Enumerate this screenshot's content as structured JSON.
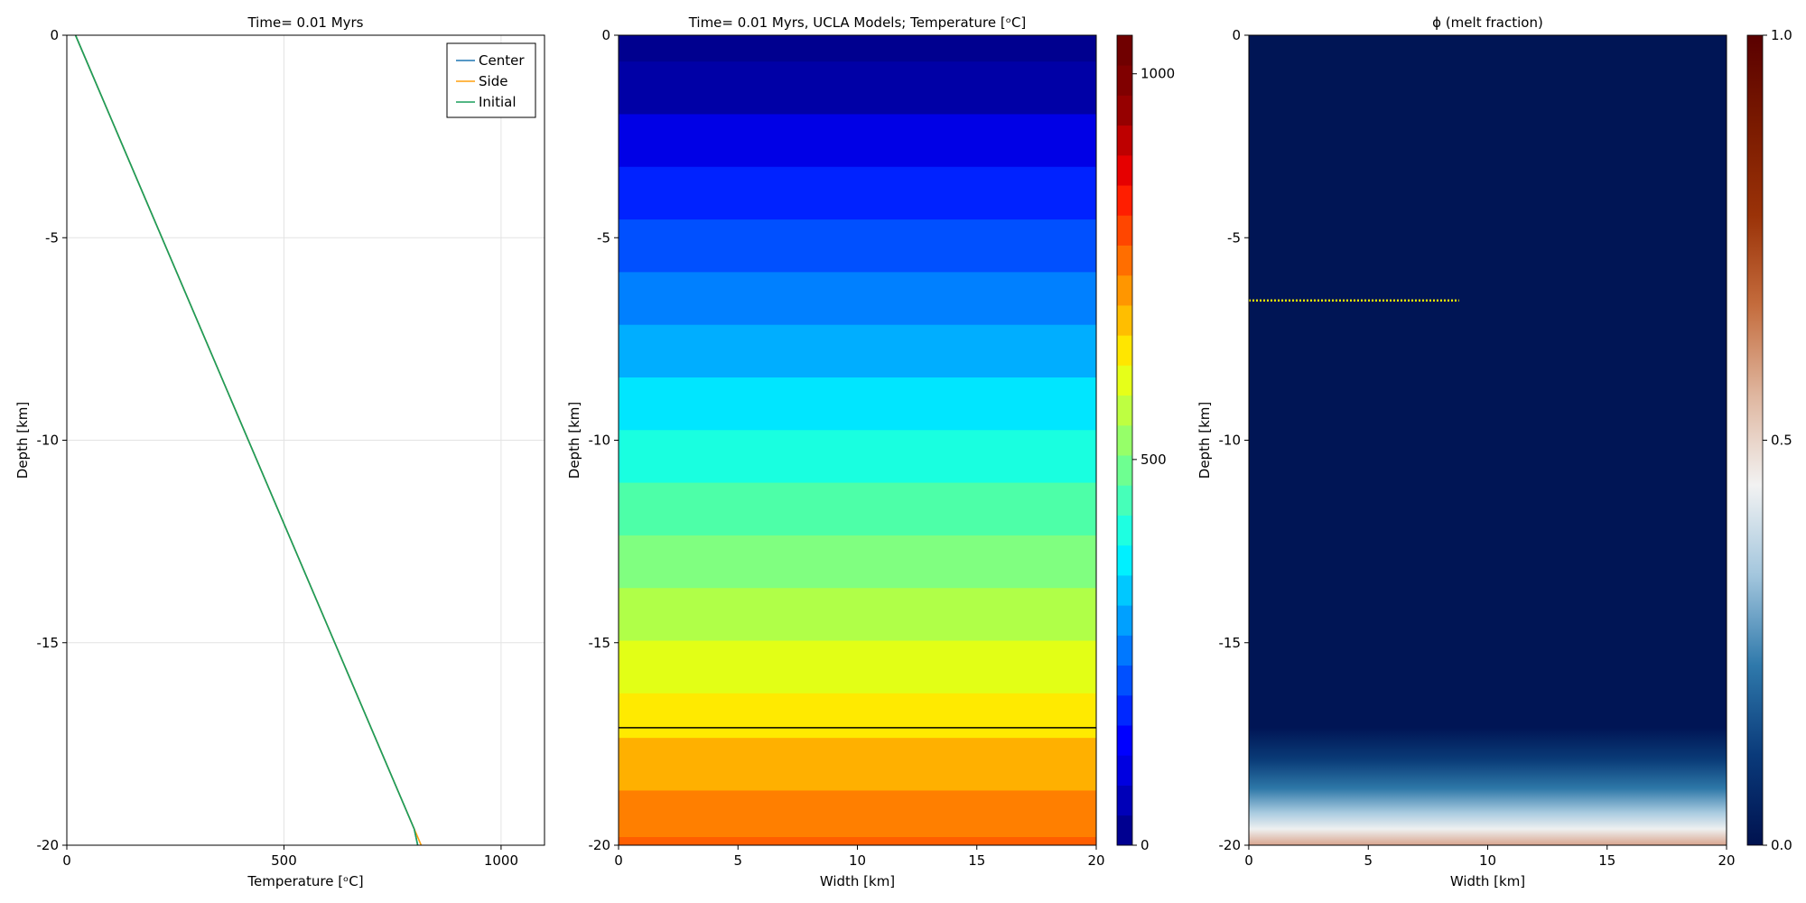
{
  "chart_data": [
    {
      "type": "line",
      "title": "Time= 0.01 Myrs",
      "xlabel": "Temperature [ᵒC]",
      "ylabel": "Depth [km]",
      "xlim": [
        0,
        1100
      ],
      "ylim": [
        -20,
        0
      ],
      "xticks": [
        "0",
        "500",
        "1000"
      ],
      "xtick_values": [
        0,
        500,
        1000
      ],
      "yticks": [
        "0",
        "-5",
        "-10",
        "-15",
        "-20"
      ],
      "ytick_values": [
        0,
        -5,
        -10,
        -15,
        -20
      ],
      "grid": true,
      "legend_position": "top-right",
      "series": [
        {
          "name": "Center",
          "color": "#1f77b4",
          "x": [
            20,
            800,
            808
          ],
          "y": [
            0,
            -19.6,
            -20
          ]
        },
        {
          "name": "Side",
          "color": "#ff9f0e",
          "x": [
            20,
            800,
            816
          ],
          "y": [
            0,
            -19.6,
            -20
          ]
        },
        {
          "name": "Initial",
          "color": "#1a9e5c",
          "x": [
            20,
            800,
            808
          ],
          "y": [
            0,
            -19.6,
            -20
          ]
        }
      ]
    },
    {
      "type": "heatmap",
      "title": "Time= 0.01 Myrs, UCLA Models; Temperature [ᵒC]",
      "xlabel": "Width [km]",
      "ylabel": "Depth [km]",
      "xlim": [
        0,
        20
      ],
      "ylim": [
        -20,
        0
      ],
      "xticks": [
        "0",
        "5",
        "10",
        "15",
        "20"
      ],
      "xtick_values": [
        0,
        5,
        10,
        15,
        20
      ],
      "yticks": [
        "0",
        "-5",
        "-10",
        "-15",
        "-20"
      ],
      "ytick_values": [
        0,
        -5,
        -10,
        -15,
        -20
      ],
      "contour_line_depth": -17.1,
      "bands": [
        {
          "top": 0,
          "bottom": -0.65,
          "value": 30,
          "color": "#00008f"
        },
        {
          "top": -0.65,
          "bottom": -1.95,
          "value": 90,
          "color": "#0000a6"
        },
        {
          "top": -1.95,
          "bottom": -3.25,
          "value": 150,
          "color": "#0000e6"
        },
        {
          "top": -3.25,
          "bottom": -4.55,
          "value": 210,
          "color": "#0022ff"
        },
        {
          "top": -4.55,
          "bottom": -5.85,
          "value": 270,
          "color": "#0050ff"
        },
        {
          "top": -5.85,
          "bottom": -7.15,
          "value": 330,
          "color": "#0080ff"
        },
        {
          "top": -7.15,
          "bottom": -8.45,
          "value": 390,
          "color": "#00aeff"
        },
        {
          "top": -8.45,
          "bottom": -9.75,
          "value": 450,
          "color": "#00e6ff"
        },
        {
          "top": -9.75,
          "bottom": -11.05,
          "value": 510,
          "color": "#19ffe0"
        },
        {
          "top": -11.05,
          "bottom": -12.35,
          "value": 570,
          "color": "#4dffa8"
        },
        {
          "top": -12.35,
          "bottom": -13.65,
          "value": 630,
          "color": "#80ff80"
        },
        {
          "top": -13.65,
          "bottom": -14.95,
          "value": 690,
          "color": "#b0ff48"
        },
        {
          "top": -14.95,
          "bottom": -16.25,
          "value": 750,
          "color": "#e2ff16"
        },
        {
          "top": -16.25,
          "bottom": -17.35,
          "value": 800,
          "color": "#ffea00"
        },
        {
          "top": -17.35,
          "bottom": -18.65,
          "value": 860,
          "color": "#ffb000"
        },
        {
          "top": -18.65,
          "bottom": -19.8,
          "value": 920,
          "color": "#ff7f00"
        },
        {
          "top": -19.8,
          "bottom": -20,
          "value": 960,
          "color": "#ff5e00"
        }
      ],
      "colorbar": {
        "range": [
          0,
          1050
        ],
        "ticks": [
          "0",
          "500",
          "1000"
        ],
        "tick_values": [
          0,
          500,
          1000
        ],
        "colors": [
          "#000090",
          "#0000b8",
          "#0000e0",
          "#0000ff",
          "#0028ff",
          "#0050ff",
          "#0078ff",
          "#00a0ff",
          "#00c8ff",
          "#00f0ff",
          "#1effe1",
          "#46ffb9",
          "#6eff91",
          "#96ff69",
          "#beff41",
          "#e6ff19",
          "#ffe600",
          "#ffbe00",
          "#ff9600",
          "#ff6e00",
          "#ff4600",
          "#ff1e00",
          "#e60000",
          "#be0000",
          "#960000",
          "#800000",
          "#700000"
        ]
      }
    },
    {
      "type": "heatmap",
      "title": "ϕ (melt fraction)",
      "xlabel": "Width [km]",
      "ylabel": "Depth [km]",
      "xlim": [
        0,
        20
      ],
      "ylim": [
        -20,
        0
      ],
      "xticks": [
        "0",
        "5",
        "10",
        "15",
        "20"
      ],
      "xtick_values": [
        0,
        5,
        10,
        15,
        20
      ],
      "yticks": [
        "0",
        "-5",
        "-10",
        "-15",
        "-20"
      ],
      "ytick_values": [
        0,
        -5,
        -10,
        -15,
        -20
      ],
      "background_color": "#001555",
      "melt_gradient_top": -17.1,
      "melt_gradient_stops": [
        {
          "depth": -17.1,
          "color": "#001555"
        },
        {
          "depth": -17.9,
          "color": "#0a3c78"
        },
        {
          "depth": -18.6,
          "color": "#2e78a8"
        },
        {
          "depth": -19.2,
          "color": "#a9cbe0"
        },
        {
          "depth": -19.6,
          "color": "#eef0f0"
        },
        {
          "depth": -20,
          "color": "#d9a58e"
        }
      ],
      "marker_line": {
        "depth": -6.55,
        "x_start": 0,
        "x_end": 8.8,
        "color": "#e8e800"
      },
      "colorbar": {
        "range": [
          0,
          1
        ],
        "ticks": [
          "0.0",
          "0.5",
          "1.0"
        ],
        "tick_values": [
          0,
          0.5,
          1
        ],
        "colors": [
          "#00124f",
          "#0a3a7a",
          "#2f79ab",
          "#a3c6dd",
          "#f2f2f2",
          "#dfb69f",
          "#c46c3d",
          "#9a3208",
          "#7a1a00",
          "#5a0000"
        ]
      }
    }
  ]
}
